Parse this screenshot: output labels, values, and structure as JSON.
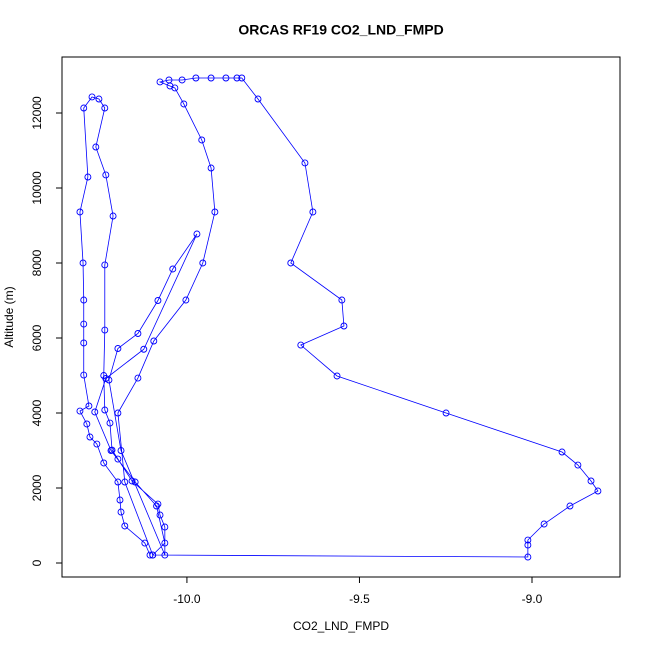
{
  "chart_data": {
    "type": "line",
    "title": "ORCAS RF19 CO2_LND_FMPD",
    "x_label": "CO2_LND_FMPD",
    "y_label": "Altitude (m)",
    "x": [
      -10.107,
      -10.122,
      -10.18,
      -10.191,
      -10.194,
      -10.2,
      -10.241,
      -10.261,
      -10.281,
      -10.29,
      -10.31,
      -10.284,
      -10.299,
      -10.299,
      -10.299,
      -10.299,
      -10.301,
      -10.31,
      -10.287,
      -10.299,
      -10.275,
      -10.255,
      -10.238,
      -10.264,
      -10.235,
      -10.214,
      -10.238,
      -10.238,
      -10.241,
      -10.238,
      -10.223,
      -10.217,
      -10.2,
      -10.159,
      -10.084,
      -10.078,
      -10.064,
      -10.064,
      -10.191,
      -10.226,
      -10.2,
      -10.142,
      -10.084,
      -10.041,
      -9.971,
      -10.125,
      -10.235,
      -10.267,
      -10.22,
      -10.15,
      -10.088,
      -10.064,
      -10.099,
      -9.012,
      -9.012,
      -9.012,
      -8.965,
      -8.89,
      -8.809,
      -8.829,
      -8.867,
      -8.913,
      -9.249,
      -9.565,
      -9.67,
      -9.545,
      -9.551,
      -9.699,
      -9.635,
      -9.658,
      -9.794,
      -9.841,
      -9.855,
      -9.887,
      -9.93,
      -9.974,
      -10.014,
      -10.052,
      -10.078,
      -10.049,
      -10.035,
      -10.009,
      -9.957,
      -9.93,
      -9.919,
      -9.954,
      -10.003,
      -10.096,
      -10.142,
      -10.2,
      -10.18,
      -10.099
    ],
    "series": [
      {
        "color": "#0000ff",
        "values": [
          213,
          533,
          987,
          1360,
          1680,
          2160,
          2667,
          3173,
          3360,
          3707,
          4053,
          4187,
          5013,
          5867,
          6373,
          7013,
          8000,
          9360,
          10293,
          12133,
          12427,
          12373,
          12133,
          11093,
          10347,
          9253,
          7947,
          6213,
          5000,
          4080,
          3733,
          3013,
          2773,
          2187,
          1573,
          1280,
          960,
          213,
          3000,
          4880,
          5720,
          6120,
          7000,
          7840,
          8773,
          5700,
          4920,
          4027,
          3000,
          2160,
          1520,
          533,
          213,
          160,
          480,
          613,
          1040,
          1520,
          1920,
          2187,
          2613,
          2960,
          4000,
          4987,
          5813,
          6320,
          7013,
          8000,
          9360,
          10667,
          12373,
          12933,
          12933,
          12933,
          12933,
          12933,
          12880,
          12880,
          12827,
          12720,
          12667,
          12240,
          11280,
          10533,
          9360,
          8000,
          7013,
          5920,
          4933,
          4000,
          2160,
          213
        ]
      }
    ],
    "xlim": [
      -10.362,
      -8.745
    ],
    "ylim": [
      -373,
      13493
    ],
    "xticks": [
      {
        "value": -10,
        "label": "-10.0"
      },
      -9.5,
      {
        "value": -9,
        "label": "-9.0"
      }
    ],
    "yticks": [
      0,
      2000,
      4000,
      6000,
      8000,
      10000,
      12000
    ],
    "marker": "circle"
  }
}
